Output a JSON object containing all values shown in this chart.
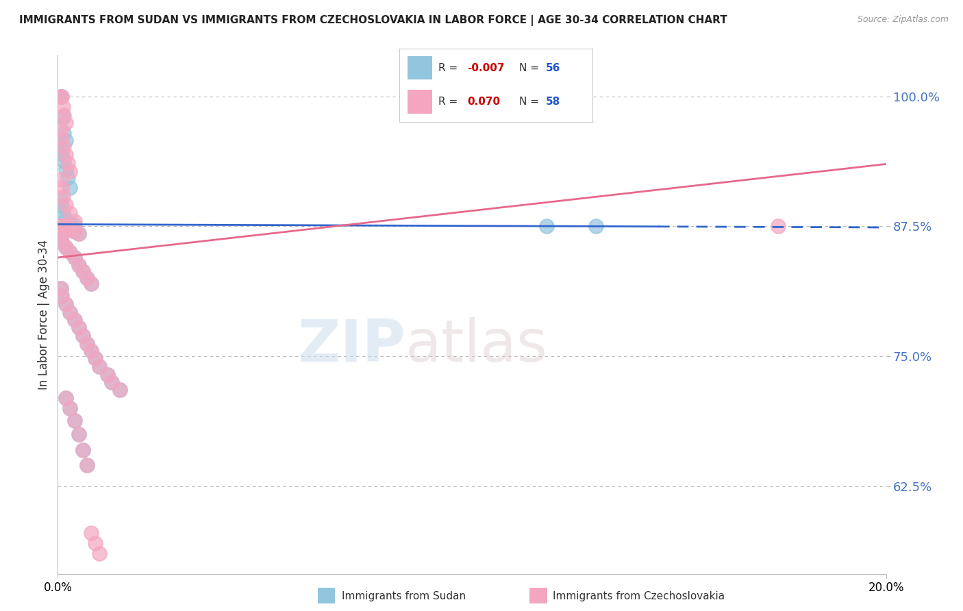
{
  "title": "IMMIGRANTS FROM SUDAN VS IMMIGRANTS FROM CZECHOSLOVAKIA IN LABOR FORCE | AGE 30-34 CORRELATION CHART",
  "source": "Source: ZipAtlas.com",
  "ylabel": "In Labor Force | Age 30-34",
  "legend_label1": "Immigrants from Sudan",
  "legend_label2": "Immigrants from Czechoslovakia",
  "R1": -0.007,
  "N1": 56,
  "R2": 0.07,
  "N2": 58,
  "xlim": [
    0.0,
    0.2
  ],
  "ylim": [
    0.54,
    1.04
  ],
  "yticks": [
    0.625,
    0.75,
    0.875,
    1.0
  ],
  "ytick_labels": [
    "62.5%",
    "75.0%",
    "87.5%",
    "100.0%"
  ],
  "xticks": [
    0.0,
    0.2
  ],
  "xtick_labels": [
    "0.0%",
    "20.0%"
  ],
  "color_sudan": "#92c5de",
  "color_czech": "#f4a6c0",
  "color_line_sudan": "#3366cc",
  "color_line_czech": "#e8688a",
  "background": "#ffffff",
  "grid_color": "#bbbbbb",
  "watermark_zip": "ZIP",
  "watermark_atlas": "atlas",
  "sudan_x": [
    0.0008,
    0.001,
    0.0012,
    0.0015,
    0.002,
    0.0008,
    0.001,
    0.0015,
    0.002,
    0.0025,
    0.003,
    0.0008,
    0.001,
    0.0012,
    0.002,
    0.003,
    0.004,
    0.0008,
    0.001,
    0.0015,
    0.002,
    0.0025,
    0.003,
    0.004,
    0.005,
    0.0008,
    0.001,
    0.002,
    0.003,
    0.004,
    0.005,
    0.006,
    0.007,
    0.008,
    0.0008,
    0.001,
    0.002,
    0.003,
    0.004,
    0.005,
    0.006,
    0.007,
    0.008,
    0.009,
    0.01,
    0.012,
    0.013,
    0.015,
    0.002,
    0.003,
    0.004,
    0.005,
    0.006,
    0.118,
    0.13,
    0.007
  ],
  "sudan_y": [
    1.0,
    1.0,
    0.98,
    0.965,
    0.958,
    0.952,
    0.945,
    0.938,
    0.93,
    0.922,
    0.912,
    0.902,
    0.895,
    0.888,
    0.882,
    0.878,
    0.876,
    0.875,
    0.875,
    0.875,
    0.875,
    0.874,
    0.872,
    0.87,
    0.868,
    0.865,
    0.86,
    0.855,
    0.85,
    0.845,
    0.838,
    0.832,
    0.825,
    0.82,
    0.815,
    0.808,
    0.8,
    0.792,
    0.785,
    0.778,
    0.77,
    0.762,
    0.755,
    0.748,
    0.74,
    0.732,
    0.725,
    0.718,
    0.71,
    0.7,
    0.688,
    0.675,
    0.66,
    0.875,
    0.875,
    0.645
  ],
  "czech_x": [
    0.0008,
    0.001,
    0.0012,
    0.0015,
    0.002,
    0.0008,
    0.001,
    0.0015,
    0.002,
    0.0025,
    0.003,
    0.0008,
    0.001,
    0.0012,
    0.002,
    0.003,
    0.004,
    0.0008,
    0.001,
    0.0015,
    0.002,
    0.0025,
    0.003,
    0.004,
    0.005,
    0.0008,
    0.001,
    0.002,
    0.003,
    0.004,
    0.005,
    0.006,
    0.007,
    0.008,
    0.0008,
    0.001,
    0.002,
    0.003,
    0.004,
    0.005,
    0.006,
    0.007,
    0.008,
    0.009,
    0.01,
    0.012,
    0.013,
    0.015,
    0.002,
    0.003,
    0.004,
    0.005,
    0.006,
    0.007,
    0.174,
    0.008,
    0.009,
    0.01
  ],
  "czech_y": [
    1.0,
    1.0,
    0.99,
    0.982,
    0.975,
    0.968,
    0.96,
    0.952,
    0.944,
    0.936,
    0.928,
    0.92,
    0.912,
    0.904,
    0.896,
    0.888,
    0.88,
    0.876,
    0.875,
    0.875,
    0.875,
    0.874,
    0.872,
    0.87,
    0.868,
    0.865,
    0.86,
    0.855,
    0.85,
    0.845,
    0.838,
    0.832,
    0.825,
    0.82,
    0.815,
    0.808,
    0.8,
    0.792,
    0.785,
    0.778,
    0.77,
    0.762,
    0.755,
    0.748,
    0.74,
    0.732,
    0.725,
    0.718,
    0.71,
    0.7,
    0.688,
    0.675,
    0.66,
    0.645,
    0.875,
    0.58,
    0.57,
    0.56
  ],
  "line1_x0": 0.0,
  "line1_x1": 0.2,
  "line1_y0": 0.877,
  "line1_y1": 0.874,
  "line1_solid_end": 0.145,
  "line2_x0": 0.0,
  "line2_x1": 0.2,
  "line2_y0": 0.845,
  "line2_y1": 0.935
}
